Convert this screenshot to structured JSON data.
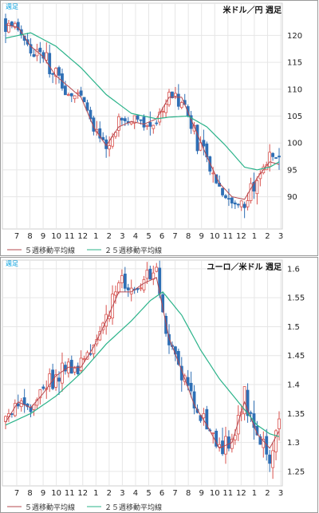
{
  "colors": {
    "up": "#d9534f",
    "down": "#2f6fb5",
    "ma5": "#b5484f",
    "ma25": "#2bb38a",
    "grid": "#e6e6e6",
    "label": "#00a0e0"
  },
  "chart_data": [
    {
      "type": "candlestick",
      "title": "米ドル／円 週足",
      "timeframe_label": "週足",
      "ylim": [
        84,
        126
      ],
      "yticks": [
        "120",
        "115",
        "110",
        "105",
        "100",
        "95",
        "90"
      ],
      "xticks": [
        "7",
        "8",
        "9",
        "10",
        "11",
        "12",
        "1",
        "2",
        "3",
        "4",
        "5",
        "6",
        "7",
        "8",
        "9",
        "10",
        "11",
        "12",
        "1",
        "2",
        "3"
      ],
      "legend": [
        "５週移動平均線",
        "２５週移動平均線"
      ],
      "grid": true,
      "series": [
        {
          "name": "週足",
          "keypoints": [
            [
              0,
              122.5
            ],
            [
              4,
              121.5
            ],
            [
              8,
              117
            ],
            [
              12,
              116.5
            ],
            [
              16,
              112
            ],
            [
              20,
              110
            ],
            [
              24,
              108.5
            ],
            [
              28,
              102
            ],
            [
              32,
              98.5
            ],
            [
              36,
              104
            ],
            [
              40,
              104
            ],
            [
              44,
              103
            ],
            [
              48,
              104.5
            ],
            [
              52,
              109
            ],
            [
              56,
              108.5
            ],
            [
              60,
              102
            ],
            [
              64,
              96
            ],
            [
              68,
              92
            ],
            [
              72,
              89
            ],
            [
              76,
              88.5
            ],
            [
              80,
              94
            ],
            [
              84,
              97
            ],
            [
              87,
              96
            ]
          ]
        },
        {
          "name": "５週移動平均線",
          "keypoints": [
            [
              0,
              122
            ],
            [
              4,
              121.5
            ],
            [
              8,
              118
            ],
            [
              12,
              116
            ],
            [
              16,
              112.5
            ],
            [
              20,
              110.5
            ],
            [
              24,
              108.5
            ],
            [
              28,
              103
            ],
            [
              32,
              99.5
            ],
            [
              36,
              103
            ],
            [
              40,
              104
            ],
            [
              44,
              103.5
            ],
            [
              48,
              104.5
            ],
            [
              52,
              108.5
            ],
            [
              56,
              108.5
            ],
            [
              60,
              103
            ],
            [
              64,
              97.5
            ],
            [
              68,
              92.5
            ],
            [
              72,
              90
            ],
            [
              76,
              89.5
            ],
            [
              80,
              93.5
            ],
            [
              84,
              96.5
            ],
            [
              87,
              96
            ]
          ]
        },
        {
          "name": "２５週移動平均線",
          "keypoints": [
            [
              0,
              119.5
            ],
            [
              8,
              120.5
            ],
            [
              16,
              118
            ],
            [
              24,
              114
            ],
            [
              32,
              109
            ],
            [
              40,
              105.5
            ],
            [
              48,
              104.5
            ],
            [
              52,
              104.8
            ],
            [
              58,
              105
            ],
            [
              64,
              103
            ],
            [
              70,
              99.5
            ],
            [
              76,
              95.5
            ],
            [
              80,
              95
            ],
            [
              84,
              95.5
            ],
            [
              87,
              96.5
            ]
          ]
        }
      ]
    },
    {
      "type": "candlestick",
      "title": "ユーロ／米ドル 週足",
      "timeframe_label": "週足",
      "ylim": [
        1.225,
        1.615
      ],
      "yticks": [
        "1.6",
        "1.55",
        "1.5",
        "1.45",
        "1.4",
        "1.35",
        "1.3",
        "1.25"
      ],
      "xticks": [
        "7",
        "8",
        "9",
        "10",
        "11",
        "12",
        "1",
        "2",
        "3",
        "4",
        "5",
        "6",
        "7",
        "8",
        "9",
        "10",
        "11",
        "12",
        "1",
        "2",
        "3"
      ],
      "legend": [
        "５週移動平均線",
        "２５週移動平均線"
      ],
      "grid": true,
      "series": [
        {
          "name": "週足",
          "keypoints": [
            [
              0,
              1.34
            ],
            [
              4,
              1.375
            ],
            [
              8,
              1.36
            ],
            [
              12,
              1.39
            ],
            [
              16,
              1.42
            ],
            [
              20,
              1.43
            ],
            [
              24,
              1.43
            ],
            [
              28,
              1.47
            ],
            [
              32,
              1.52
            ],
            [
              36,
              1.57
            ],
            [
              40,
              1.56
            ],
            [
              44,
              1.58
            ],
            [
              48,
              1.59
            ],
            [
              52,
              1.47
            ],
            [
              56,
              1.42
            ],
            [
              60,
              1.36
            ],
            [
              64,
              1.34
            ],
            [
              68,
              1.29
            ],
            [
              72,
              1.3
            ],
            [
              76,
              1.38
            ],
            [
              80,
              1.31
            ],
            [
              84,
              1.28
            ],
            [
              87,
              1.355
            ]
          ]
        },
        {
          "name": "５週移動平均線",
          "keypoints": [
            [
              0,
              1.335
            ],
            [
              4,
              1.37
            ],
            [
              8,
              1.36
            ],
            [
              12,
              1.385
            ],
            [
              16,
              1.415
            ],
            [
              20,
              1.43
            ],
            [
              24,
              1.43
            ],
            [
              28,
              1.465
            ],
            [
              32,
              1.51
            ],
            [
              36,
              1.56
            ],
            [
              40,
              1.56
            ],
            [
              44,
              1.575
            ],
            [
              48,
              1.585
            ],
            [
              52,
              1.48
            ],
            [
              56,
              1.425
            ],
            [
              60,
              1.365
            ],
            [
              64,
              1.33
            ],
            [
              68,
              1.29
            ],
            [
              72,
              1.3
            ],
            [
              76,
              1.37
            ],
            [
              80,
              1.315
            ],
            [
              84,
              1.29
            ],
            [
              87,
              1.32
            ]
          ]
        },
        {
          "name": "２５週移動平均線",
          "keypoints": [
            [
              0,
              1.33
            ],
            [
              8,
              1.35
            ],
            [
              16,
              1.38
            ],
            [
              24,
              1.42
            ],
            [
              32,
              1.47
            ],
            [
              40,
              1.51
            ],
            [
              46,
              1.545
            ],
            [
              50,
              1.56
            ],
            [
              56,
              1.52
            ],
            [
              62,
              1.46
            ],
            [
              68,
              1.41
            ],
            [
              74,
              1.37
            ],
            [
              80,
              1.33
            ],
            [
              84,
              1.315
            ],
            [
              87,
              1.31
            ]
          ]
        }
      ]
    }
  ]
}
